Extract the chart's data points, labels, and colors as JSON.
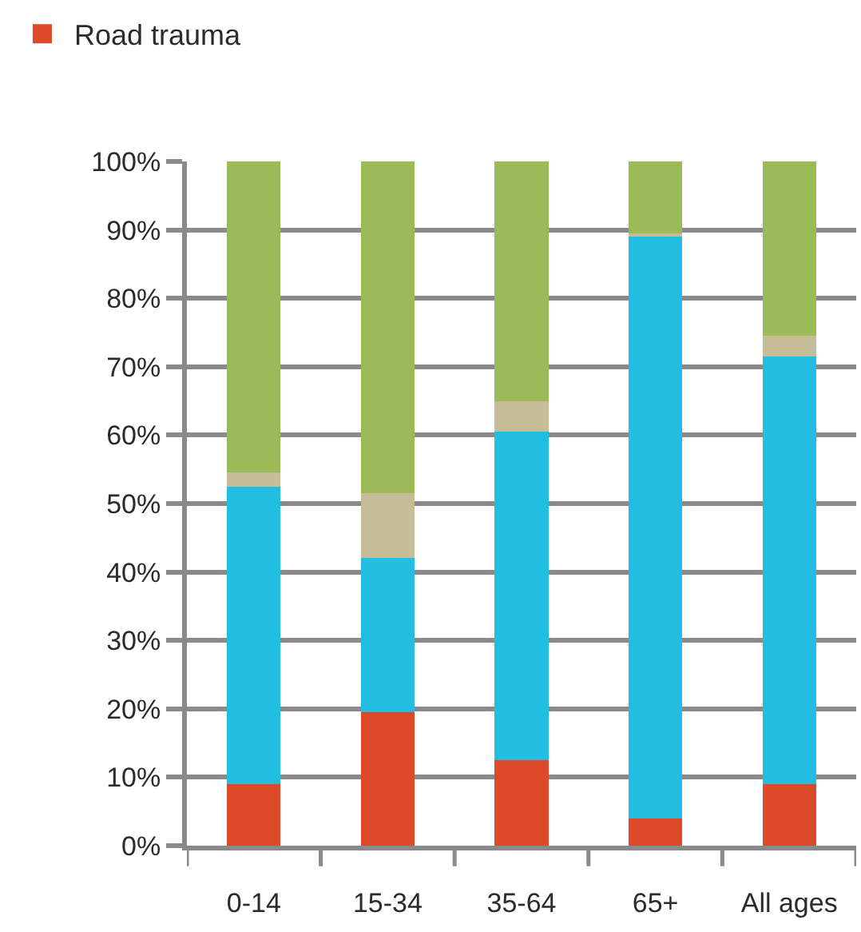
{
  "chart_data": {
    "type": "bar",
    "stacked": true,
    "categories": [
      "0-14",
      "15-34",
      "35-64",
      "65+",
      "All ages"
    ],
    "series": [
      {
        "name": "Road trauma",
        "color": "#dc4a2a",
        "values": [
          9,
          19.5,
          12.5,
          4,
          9
        ]
      },
      {
        "color": "#22bde1",
        "values": [
          43.5,
          22.5,
          48,
          85,
          62.5
        ]
      },
      {
        "color": "#c5bd97",
        "values": [
          2,
          9.5,
          4.5,
          0.5,
          3
        ]
      },
      {
        "color": "#9bbb59",
        "values": [
          45.5,
          48.5,
          35,
          10.5,
          25.5
        ]
      }
    ],
    "ylim": [
      0,
      100
    ],
    "yticks": [
      {
        "value": 0,
        "label": "0%"
      },
      {
        "value": 10,
        "label": "10%"
      },
      {
        "value": 20,
        "label": "20%"
      },
      {
        "value": 30,
        "label": "30%"
      },
      {
        "value": 40,
        "label": "40%"
      },
      {
        "value": 50,
        "label": "50%"
      },
      {
        "value": 60,
        "label": "60%"
      },
      {
        "value": 70,
        "label": "70%"
      },
      {
        "value": 80,
        "label": "80%"
      },
      {
        "value": 90,
        "label": "90%"
      },
      {
        "value": 100,
        "label": "100%"
      }
    ],
    "grid": "y",
    "legend": "top left"
  }
}
